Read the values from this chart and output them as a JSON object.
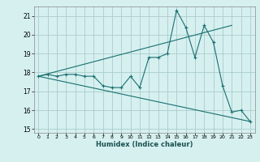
{
  "title": "",
  "xlabel": "Humidex (Indice chaleur)",
  "bg_color": "#d6f0f0",
  "grid_color": "#aacccc",
  "line_color": "#1a7070",
  "xlim": [
    -0.5,
    23.5
  ],
  "ylim": [
    14.8,
    21.5
  ],
  "xticks": [
    0,
    1,
    2,
    3,
    4,
    5,
    6,
    7,
    8,
    9,
    10,
    11,
    12,
    13,
    14,
    15,
    16,
    17,
    18,
    19,
    20,
    21,
    22,
    23
  ],
  "yticks": [
    15,
    16,
    17,
    18,
    19,
    20,
    21
  ],
  "main_x": [
    0,
    1,
    2,
    3,
    4,
    5,
    6,
    7,
    8,
    9,
    10,
    11,
    12,
    13,
    14,
    15,
    16,
    17,
    18,
    19,
    20,
    21,
    22,
    23
  ],
  "main_y": [
    17.8,
    17.9,
    17.8,
    17.9,
    17.9,
    17.8,
    17.8,
    17.3,
    17.2,
    17.2,
    17.8,
    17.2,
    18.8,
    18.8,
    19.0,
    21.3,
    20.4,
    18.8,
    20.5,
    19.6,
    17.3,
    15.9,
    16.0,
    15.4
  ],
  "trend1_x": [
    0,
    21
  ],
  "trend1_y": [
    17.8,
    20.5
  ],
  "trend2_x": [
    0,
    23
  ],
  "trend2_y": [
    17.8,
    15.4
  ]
}
